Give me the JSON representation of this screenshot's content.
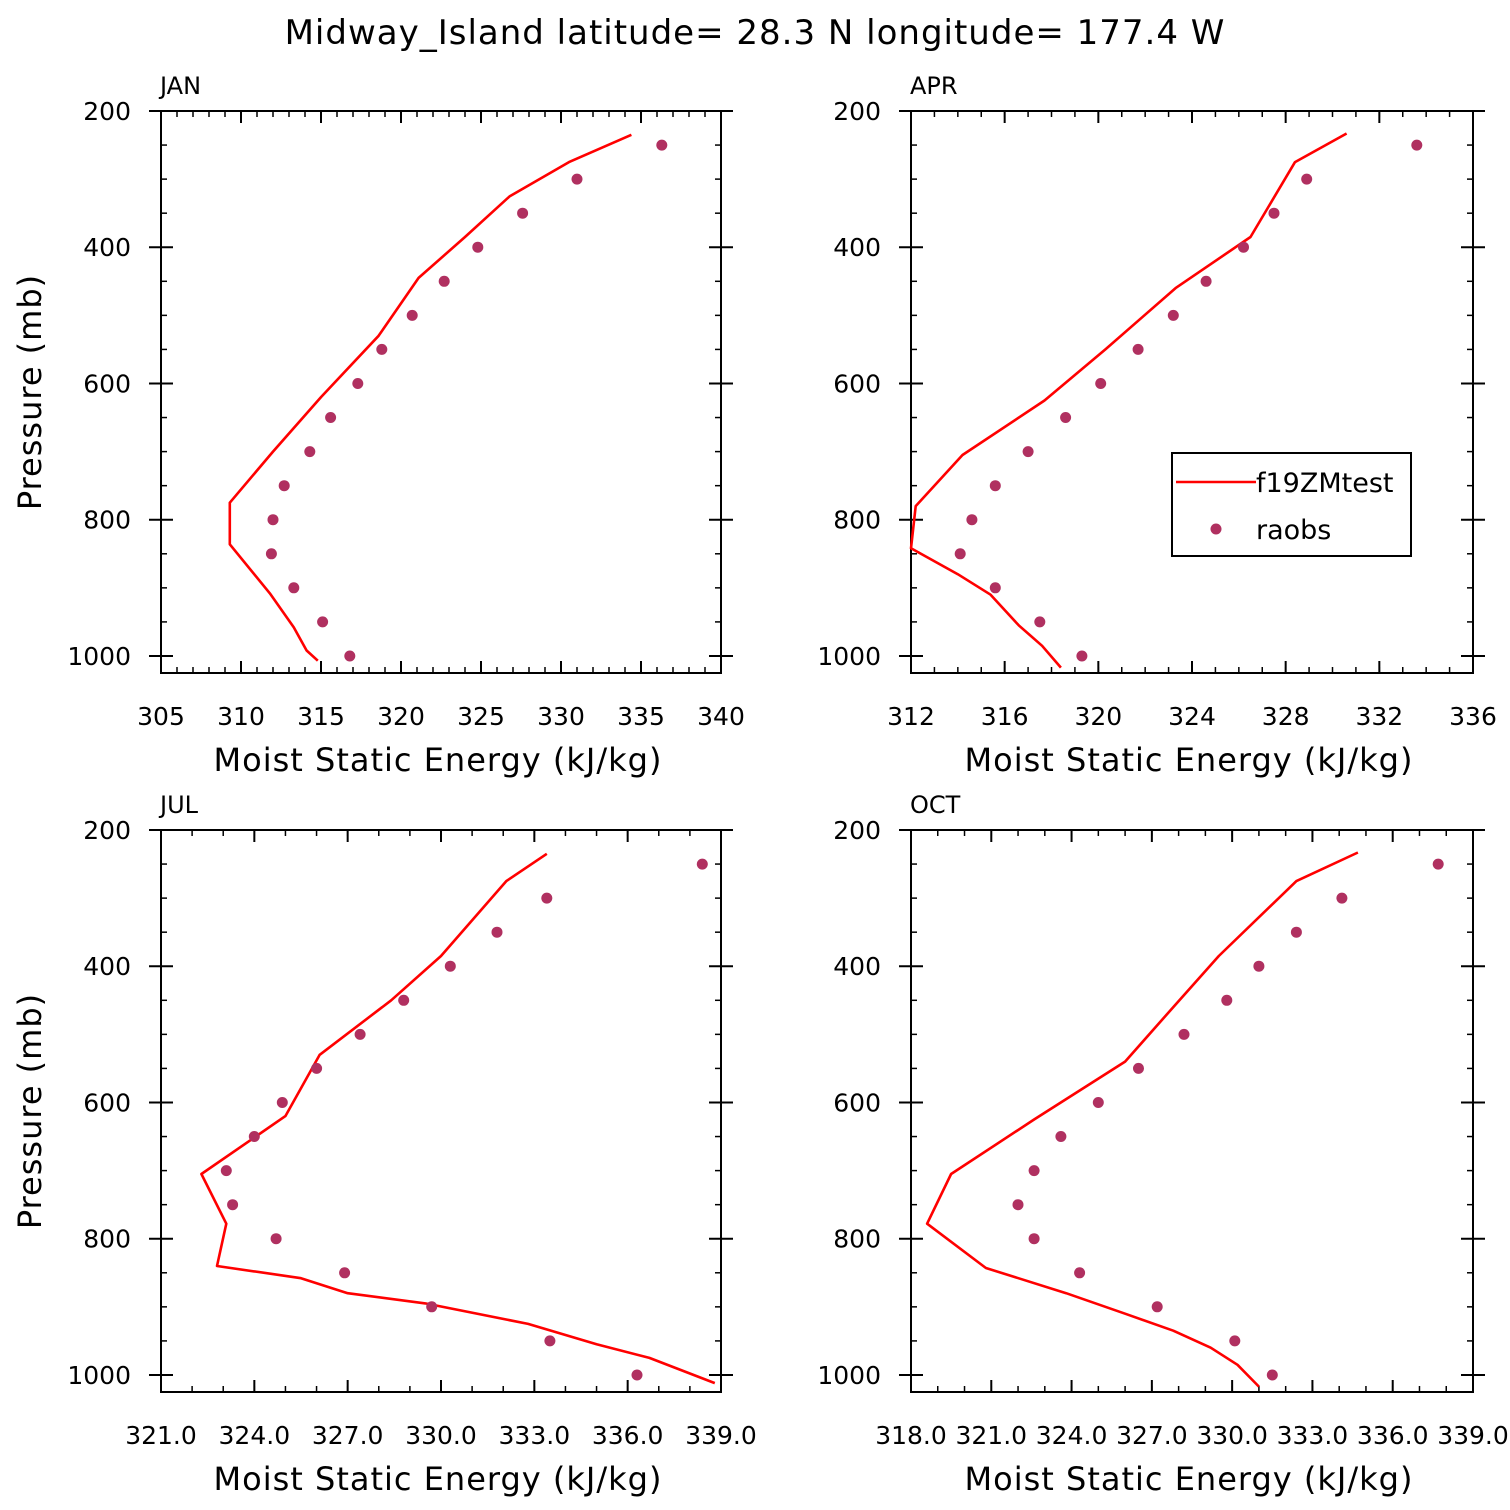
{
  "figure": {
    "title": "Midway_Island  latitude= 28.3 N longitude= 177.4 W"
  },
  "legend": {
    "model_label": "f19ZMtest",
    "obs_label": "raobs"
  },
  "colors": {
    "model_line": "#ff0000",
    "obs_marker": "#b03060",
    "axis": "#000000",
    "background": "#ffffff"
  },
  "chart_data": [
    {
      "type": "line",
      "title": "JAN",
      "xlabel": "Moist Static Energy (kJ/kg)",
      "ylabel": "Pressure (mb)",
      "xlim": [
        305,
        340
      ],
      "ylim": [
        1025,
        200
      ],
      "y_reversed": true,
      "xticks": [
        305,
        310,
        315,
        320,
        325,
        330,
        335,
        340
      ],
      "xtick_labels": [
        "305",
        "310",
        "315",
        "320",
        "325",
        "330",
        "335",
        "340"
      ],
      "x_minor_step": 1,
      "yticks": [
        200,
        400,
        600,
        800,
        1000
      ],
      "ytick_labels": [
        "200",
        "400",
        "600",
        "800",
        "1000"
      ],
      "y_minor_step": 50,
      "grid": false,
      "legend": false,
      "series": [
        {
          "name": "f19ZMtest",
          "kind": "line",
          "x": [
            314.8,
            314.1,
            313.3,
            311.8,
            309.3,
            309.3,
            312.0,
            315.0,
            318.6,
            321.1,
            324.0,
            326.8,
            330.5,
            334.4
          ],
          "y": [
            1007,
            992,
            958,
            908,
            836,
            775,
            700,
            620,
            530,
            445,
            385,
            325,
            275,
            235
          ]
        },
        {
          "name": "raobs",
          "kind": "scatter",
          "x": [
            316.8,
            315.1,
            313.3,
            311.9,
            312.0,
            312.7,
            314.3,
            315.6,
            317.3,
            318.8,
            320.7,
            322.7,
            324.8,
            327.6,
            331.0,
            336.3
          ],
          "y": [
            1000,
            950,
            900,
            850,
            800,
            750,
            700,
            650,
            600,
            550,
            500,
            450,
            400,
            350,
            300,
            250
          ]
        }
      ]
    },
    {
      "type": "line",
      "title": "APR",
      "xlabel": "Moist Static Energy (kJ/kg)",
      "ylabel": "",
      "xlim": [
        312,
        336
      ],
      "ylim": [
        1025,
        200
      ],
      "y_reversed": true,
      "xticks": [
        312,
        316,
        320,
        324,
        328,
        332,
        336
      ],
      "xtick_labels": [
        "312",
        "316",
        "320",
        "324",
        "328",
        "332",
        "336"
      ],
      "x_minor_step": 1,
      "yticks": [
        200,
        400,
        600,
        800,
        1000
      ],
      "ytick_labels": [
        "200",
        "400",
        "600",
        "800",
        "1000"
      ],
      "y_minor_step": 50,
      "grid": false,
      "legend": "inside-right",
      "series": [
        {
          "name": "f19ZMtest",
          "kind": "line",
          "x": [
            318.4,
            317.6,
            316.6,
            315.4,
            314.0,
            312.0,
            312.2,
            314.2,
            317.7,
            320.3,
            323.3,
            326.5,
            328.4,
            330.6
          ],
          "y": [
            1017,
            985,
            955,
            910,
            880,
            842,
            780,
            705,
            625,
            550,
            460,
            385,
            275,
            233
          ]
        },
        {
          "name": "raobs",
          "kind": "scatter",
          "x": [
            319.3,
            317.5,
            315.6,
            314.1,
            314.6,
            315.6,
            317.0,
            318.6,
            320.1,
            321.7,
            323.2,
            324.6,
            326.2,
            327.5,
            328.9,
            333.6
          ],
          "y": [
            1000,
            950,
            900,
            850,
            800,
            750,
            700,
            650,
            600,
            550,
            500,
            450,
            400,
            350,
            300,
            250
          ]
        }
      ]
    },
    {
      "type": "line",
      "title": "JUL",
      "xlabel": "Moist Static Energy (kJ/kg)",
      "ylabel": "Pressure (mb)",
      "xlim": [
        321,
        339
      ],
      "ylim": [
        1025,
        200
      ],
      "y_reversed": true,
      "xticks": [
        321,
        324,
        327,
        330,
        333,
        336,
        339
      ],
      "xtick_labels": [
        "321.0",
        "324.0",
        "327.0",
        "330.0",
        "333.0",
        "336.0",
        "339.0"
      ],
      "x_minor_step": 1,
      "yticks": [
        200,
        400,
        600,
        800,
        1000
      ],
      "ytick_labels": [
        "200",
        "400",
        "600",
        "800",
        "1000"
      ],
      "y_minor_step": 50,
      "grid": false,
      "legend": false,
      "series": [
        {
          "name": "f19ZMtest",
          "kind": "line",
          "x": [
            338.8,
            336.7,
            335.0,
            332.8,
            329.5,
            327.0,
            325.5,
            322.8,
            323.1,
            322.3,
            325.0,
            326.1,
            328.4,
            330.0,
            332.1,
            333.4
          ],
          "y": [
            1012,
            975,
            955,
            925,
            895,
            880,
            858,
            840,
            778,
            705,
            620,
            530,
            450,
            385,
            275,
            235
          ]
        },
        {
          "name": "raobs",
          "kind": "scatter",
          "x": [
            336.3,
            333.5,
            329.7,
            326.9,
            324.7,
            323.3,
            323.1,
            324.0,
            324.9,
            326.0,
            327.4,
            328.8,
            330.3,
            331.8,
            333.4,
            338.4
          ],
          "y": [
            1000,
            950,
            900,
            850,
            800,
            750,
            700,
            650,
            600,
            550,
            500,
            450,
            400,
            350,
            300,
            250
          ]
        }
      ]
    },
    {
      "type": "line",
      "title": "OCT",
      "xlabel": "Moist Static Energy (kJ/kg)",
      "ylabel": "",
      "xlim": [
        318,
        339
      ],
      "ylim": [
        1025,
        200
      ],
      "y_reversed": true,
      "xticks": [
        318,
        321,
        324,
        327,
        330,
        333,
        336,
        339
      ],
      "xtick_labels": [
        "318.0",
        "321.0",
        "324.0",
        "327.0",
        "330.0",
        "333.0",
        "336.0",
        "339.0"
      ],
      "x_minor_step": 1,
      "yticks": [
        200,
        400,
        600,
        800,
        1000
      ],
      "ytick_labels": [
        "200",
        "400",
        "600",
        "800",
        "1000"
      ],
      "y_minor_step": 50,
      "grid": false,
      "legend": false,
      "series": [
        {
          "name": "f19ZMtest",
          "kind": "line",
          "x": [
            331.0,
            330.2,
            329.2,
            327.8,
            326.0,
            323.8,
            320.8,
            318.6,
            319.5,
            322.6,
            326.0,
            327.8,
            329.5,
            332.4,
            334.7
          ],
          "y": [
            1017,
            985,
            960,
            935,
            910,
            880,
            843,
            778,
            705,
            625,
            540,
            460,
            385,
            275,
            233
          ]
        },
        {
          "name": "raobs",
          "kind": "scatter",
          "x": [
            331.5,
            330.1,
            327.2,
            324.3,
            322.6,
            322.0,
            322.6,
            323.6,
            325.0,
            326.5,
            328.2,
            329.8,
            331.0,
            332.4,
            334.1,
            337.7
          ],
          "y": [
            1000,
            950,
            900,
            850,
            800,
            750,
            700,
            650,
            600,
            550,
            500,
            450,
            400,
            350,
            300,
            250
          ]
        }
      ]
    }
  ]
}
